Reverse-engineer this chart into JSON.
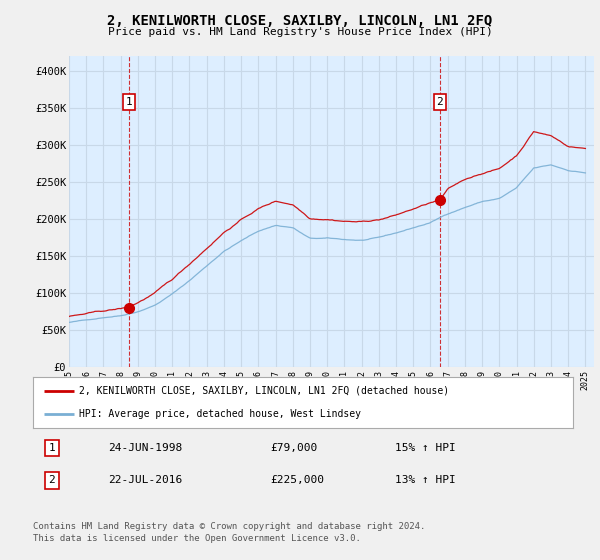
{
  "title": "2, KENILWORTH CLOSE, SAXILBY, LINCOLN, LN1 2FQ",
  "subtitle": "Price paid vs. HM Land Registry's House Price Index (HPI)",
  "ylim": [
    0,
    420000
  ],
  "yticks": [
    0,
    50000,
    100000,
    150000,
    200000,
    250000,
    300000,
    350000,
    400000
  ],
  "ytick_labels": [
    "£0",
    "£50K",
    "£100K",
    "£150K",
    "£200K",
    "£250K",
    "£300K",
    "£350K",
    "£400K"
  ],
  "xlim_start": 1995.0,
  "xlim_end": 2025.5,
  "sale1_date_num": 1998.48,
  "sale1_price": 79000,
  "sale2_date_num": 2016.55,
  "sale2_price": 225000,
  "sale1_date_str": "24-JUN-1998",
  "sale1_price_str": "£79,000",
  "sale1_hpi_str": "15% ↑ HPI",
  "sale2_date_str": "22-JUL-2016",
  "sale2_price_str": "£225,000",
  "sale2_hpi_str": "13% ↑ HPI",
  "line_color_red": "#cc0000",
  "line_color_blue": "#7aafd4",
  "dashed_color": "#cc0000",
  "legend_label_red": "2, KENILWORTH CLOSE, SAXILBY, LINCOLN, LN1 2FQ (detached house)",
  "legend_label_blue": "HPI: Average price, detached house, West Lindsey",
  "footer1": "Contains HM Land Registry data © Crown copyright and database right 2024.",
  "footer2": "This data is licensed under the Open Government Licence v3.0.",
  "bg_color": "#f0f0f0",
  "plot_bg_color": "#ddeeff",
  "grid_color": "#c8d8e8",
  "legend_bg": "#ffffff"
}
